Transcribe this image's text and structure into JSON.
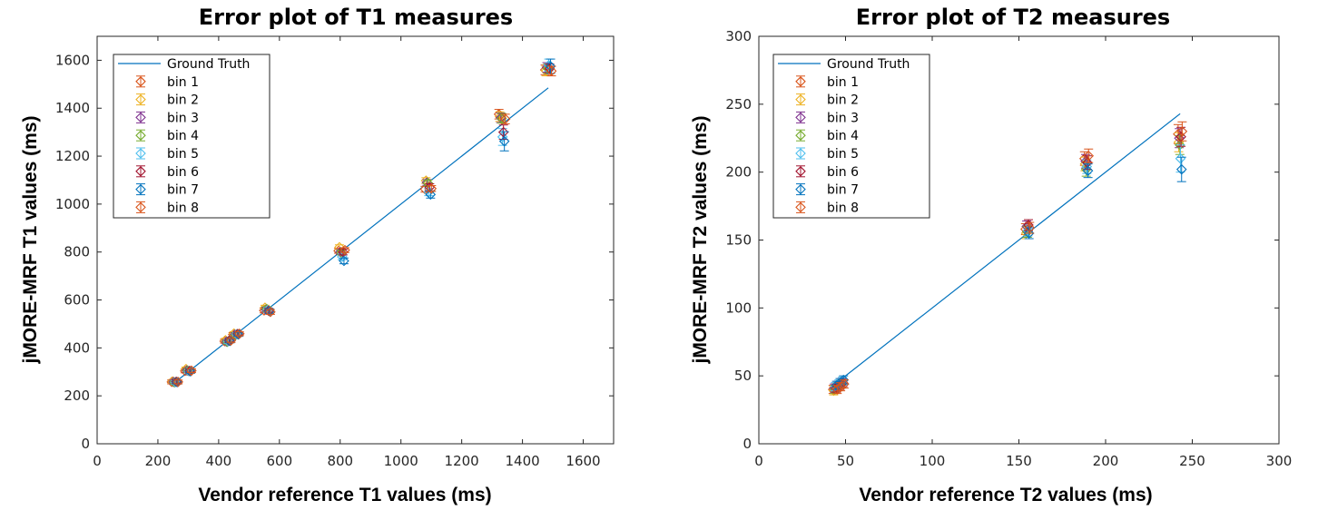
{
  "colors": {
    "ground_truth": "#0072BD",
    "bins": [
      "#D95319",
      "#EDB120",
      "#7E2F8E",
      "#77AC30",
      "#4DBEEE",
      "#A2142F",
      "#0072BD",
      "#D95319"
    ]
  },
  "chart_data": [
    {
      "type": "scatter",
      "title": "Error plot of T1 measures",
      "xlabel": "Vendor reference T1 values (ms)",
      "ylabel": "jMORE-MRF  T1 values (ms)",
      "xlim": [
        0,
        1700
      ],
      "ylim": [
        0,
        1700
      ],
      "xticks": [
        "0",
        "200",
        "400",
        "600",
        "800",
        "1000",
        "1200",
        "1400",
        "1600"
      ],
      "yticks": [
        "0",
        "200",
        "400",
        "600",
        "800",
        "1000",
        "1200",
        "1400",
        "1600"
      ],
      "legend_position": "top-left",
      "ground_truth": {
        "name": "Ground Truth",
        "x": [
          255,
          1485
        ],
        "y": [
          255,
          1485
        ]
      },
      "x": [
        256,
        300,
        430,
        458,
        560,
        805,
        1090,
        1333,
        1485
      ],
      "series": [
        {
          "name": "bin 1",
          "values": [
            258,
            304,
            428,
            456,
            556,
            805,
            1062,
            1375,
            1560
          ],
          "errors": [
            8,
            8,
            8,
            8,
            10,
            10,
            12,
            20,
            20
          ]
        },
        {
          "name": "bin 2",
          "values": [
            260,
            312,
            432,
            460,
            568,
            820,
            1098,
            1365,
            1555
          ],
          "errors": [
            8,
            8,
            8,
            8,
            10,
            10,
            12,
            20,
            20
          ]
        },
        {
          "name": "bin 3",
          "values": [
            258,
            306,
            426,
            455,
            560,
            800,
            1090,
            1360,
            1570
          ],
          "errors": [
            8,
            8,
            8,
            8,
            10,
            10,
            12,
            20,
            20
          ]
        },
        {
          "name": "bin 4",
          "values": [
            256,
            305,
            425,
            454,
            562,
            798,
            1088,
            1358,
            1565
          ],
          "errors": [
            8,
            8,
            8,
            8,
            10,
            10,
            12,
            20,
            20
          ]
        },
        {
          "name": "bin 5",
          "values": [
            257,
            303,
            427,
            457,
            558,
            780,
            1050,
            1280,
            1580
          ],
          "errors": [
            8,
            8,
            8,
            8,
            10,
            12,
            15,
            35,
            25
          ]
        },
        {
          "name": "bin 6",
          "values": [
            259,
            304,
            430,
            458,
            555,
            800,
            1070,
            1300,
            1565
          ],
          "errors": [
            8,
            8,
            8,
            8,
            10,
            12,
            15,
            30,
            20
          ]
        },
        {
          "name": "bin 7",
          "values": [
            257,
            302,
            429,
            456,
            553,
            763,
            1040,
            1262,
            1575
          ],
          "errors": [
            8,
            8,
            8,
            8,
            10,
            12,
            15,
            40,
            30
          ]
        },
        {
          "name": "bin 8",
          "values": [
            258,
            305,
            431,
            459,
            550,
            808,
            1065,
            1355,
            1555
          ],
          "errors": [
            8,
            8,
            8,
            8,
            10,
            10,
            12,
            20,
            20
          ]
        }
      ]
    },
    {
      "type": "scatter",
      "title": "Error plot of T2 measures",
      "xlabel": "Vendor reference T2 values (ms)",
      "ylabel": "jMORE-MRF  T2 values (ms)",
      "xlim": [
        0,
        300
      ],
      "ylim": [
        0,
        300
      ],
      "xticks": [
        "0",
        "50",
        "100",
        "150",
        "200",
        "250",
        "300"
      ],
      "yticks": [
        "0",
        "50",
        "100",
        "150",
        "200",
        "250",
        "300"
      ],
      "legend_position": "top-left",
      "ground_truth": {
        "name": "Ground Truth",
        "x": [
          44,
          243
        ],
        "y": [
          44,
          243
        ]
      },
      "x": [
        44,
        46,
        48,
        155,
        189,
        243
      ],
      "series": [
        {
          "name": "bin 1",
          "values": [
            40,
            41,
            43,
            158,
            210,
            228
          ],
          "errors": [
            3,
            3,
            3,
            4,
            5,
            7
          ]
        },
        {
          "name": "bin 2",
          "values": [
            39,
            42,
            44,
            155,
            206,
            222
          ],
          "errors": [
            3,
            3,
            3,
            4,
            5,
            7
          ]
        },
        {
          "name": "bin 3",
          "values": [
            41,
            43,
            45,
            160,
            208,
            225
          ],
          "errors": [
            3,
            3,
            3,
            4,
            5,
            7
          ]
        },
        {
          "name": "bin 4",
          "values": [
            40,
            42,
            44,
            156,
            202,
            220
          ],
          "errors": [
            3,
            3,
            3,
            4,
            5,
            7
          ]
        },
        {
          "name": "bin 5",
          "values": [
            42,
            44,
            46,
            157,
            204,
            210
          ],
          "errors": [
            3,
            3,
            3,
            4,
            5,
            10
          ]
        },
        {
          "name": "bin 6",
          "values": [
            41,
            43,
            45,
            161,
            207,
            226
          ],
          "errors": [
            3,
            3,
            3,
            4,
            5,
            7
          ]
        },
        {
          "name": "bin 7",
          "values": [
            43,
            45,
            47,
            155,
            201,
            202
          ],
          "errors": [
            3,
            3,
            3,
            4,
            5,
            9
          ]
        },
        {
          "name": "bin 8",
          "values": [
            40,
            42,
            44,
            159,
            212,
            230
          ],
          "errors": [
            3,
            3,
            3,
            4,
            5,
            7
          ]
        }
      ]
    }
  ]
}
